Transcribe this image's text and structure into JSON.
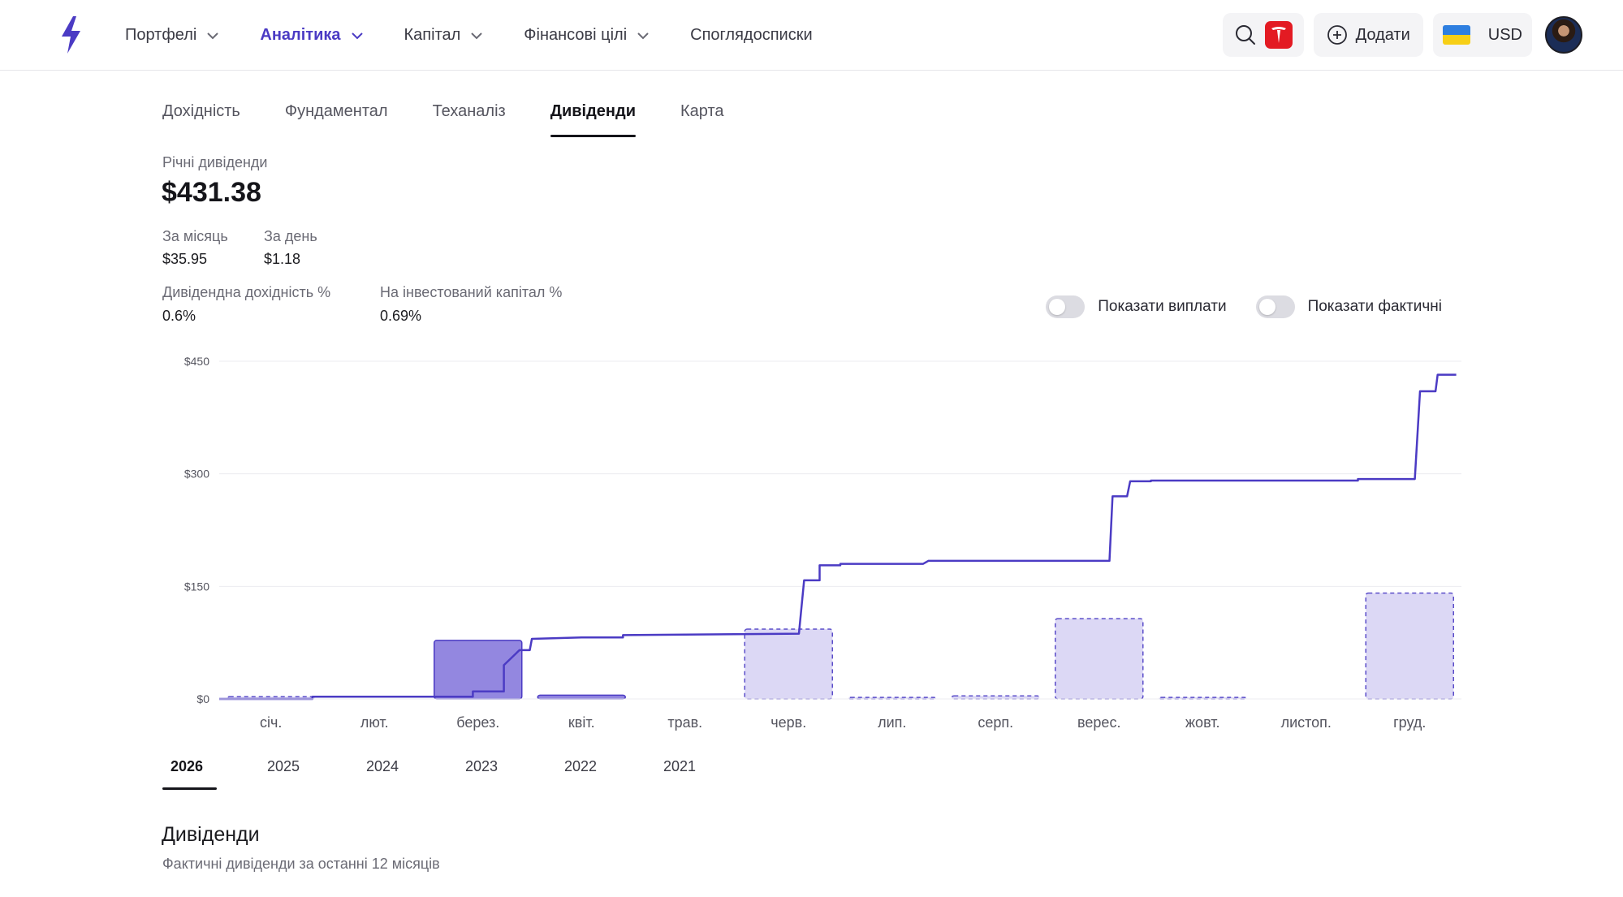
{
  "header": {
    "nav": [
      {
        "label": "Портфелі",
        "has_menu": true,
        "active": false
      },
      {
        "label": "Аналітика",
        "has_menu": true,
        "active": true
      },
      {
        "label": "Капітал",
        "has_menu": true,
        "active": false
      },
      {
        "label": "Фінансові цілі",
        "has_menu": true,
        "active": false
      },
      {
        "label": "Споглядосписки",
        "has_menu": false,
        "active": false
      }
    ],
    "add_label": "Додати",
    "currency": "USD",
    "accent_color": "#4b3bc4"
  },
  "tabs": [
    {
      "label": "Дохідність",
      "active": false
    },
    {
      "label": "Фундаментал",
      "active": false
    },
    {
      "label": "Теханаліз",
      "active": false
    },
    {
      "label": "Дивіденди",
      "active": true
    },
    {
      "label": "Карта",
      "active": false
    }
  ],
  "summary": {
    "annual_label": "Річні дивіденди",
    "annual_value": "$431.38",
    "month_label": "За місяць",
    "month_value": "$35.95",
    "day_label": "За день",
    "day_value": "$1.18",
    "yield_label": "Дивідендна дохідність %",
    "yield_value": "0.6%",
    "yoc_label": "На інвестований капітал %",
    "yoc_value": "0.69%"
  },
  "toggles": {
    "payouts_label": "Показати виплати",
    "payouts_on": false,
    "actual_label": "Показати фактичні",
    "actual_on": false
  },
  "chart_data": {
    "type": "bar",
    "categories": [
      "січ.",
      "лют.",
      "берез.",
      "квіт.",
      "трав.",
      "черв.",
      "лип.",
      "серп.",
      "верес.",
      "жовт.",
      "листоп.",
      "груд."
    ],
    "y_ticks": [
      "$0",
      "$150",
      "$300",
      "$450"
    ],
    "ylim": [
      0,
      450
    ],
    "grid": true,
    "series": [
      {
        "style": "solid",
        "color": "#9387e0",
        "values": [
          0,
          0,
          78,
          5,
          0,
          0,
          0,
          0,
          0,
          0,
          0,
          0
        ]
      },
      {
        "style": "dashed",
        "color": "#dcd8f5",
        "values": [
          3,
          0,
          0,
          0,
          0,
          93,
          2,
          4,
          107,
          2,
          0,
          141
        ]
      }
    ],
    "cumulative_line": {
      "color": "#4b3bc4",
      "points": [
        [
          0,
          0
        ],
        [
          0.9,
          0
        ],
        [
          0.9,
          3
        ],
        [
          1.2,
          3
        ],
        [
          1.2,
          3
        ],
        [
          2.4,
          3
        ],
        [
          2.4,
          3
        ],
        [
          2.45,
          3
        ],
        [
          2.45,
          10
        ],
        [
          2.7,
          10
        ],
        [
          2.7,
          10
        ],
        [
          2.75,
          10
        ],
        [
          2.75,
          45
        ],
        [
          2.9,
          65
        ],
        [
          3.0,
          65
        ],
        [
          3.02,
          80
        ],
        [
          3.5,
          82
        ],
        [
          3.9,
          82
        ],
        [
          3.9,
          85
        ],
        [
          5.6,
          87
        ],
        [
          5.6,
          87
        ],
        [
          5.65,
          158
        ],
        [
          5.8,
          158
        ],
        [
          5.8,
          178
        ],
        [
          6.0,
          178
        ],
        [
          6.0,
          180
        ],
        [
          6.8,
          180
        ],
        [
          6.85,
          184
        ],
        [
          8.6,
          184
        ],
        [
          8.63,
          270
        ],
        [
          8.77,
          270
        ],
        [
          8.8,
          290
        ],
        [
          9.0,
          290
        ],
        [
          9.0,
          291
        ],
        [
          11.0,
          291
        ],
        [
          11.0,
          293
        ],
        [
          11.55,
          293
        ],
        [
          11.6,
          410
        ],
        [
          11.75,
          410
        ],
        [
          11.77,
          432
        ],
        [
          11.95,
          432
        ]
      ]
    }
  },
  "years": [
    {
      "label": "2026",
      "active": true
    },
    {
      "label": "2025",
      "active": false
    },
    {
      "label": "2024",
      "active": false
    },
    {
      "label": "2023",
      "active": false
    },
    {
      "label": "2022",
      "active": false
    },
    {
      "label": "2021",
      "active": false
    }
  ],
  "dividends_section": {
    "title": "Дивіденди",
    "subtitle": "Фактичні дивіденди за останні 12 місяців"
  }
}
